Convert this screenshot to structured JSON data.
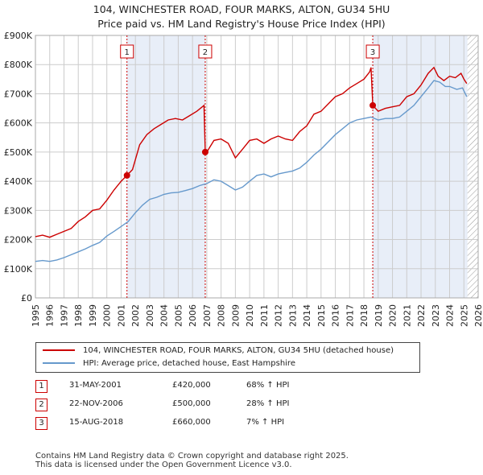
{
  "title": {
    "line1": "104, WINCHESTER ROAD, FOUR MARKS, ALTON, GU34 5HU",
    "line2": "Price paid vs. HM Land Registry's House Price Index (HPI)"
  },
  "colors": {
    "property": "#cc0000",
    "hpi": "#6699cc",
    "shade": "#e8eef8",
    "grid": "#cccccc",
    "marker_border": "#cc0000"
  },
  "legend": {
    "property_label": "104, WINCHESTER ROAD, FOUR MARKS, ALTON, GU34 5HU (detached house)",
    "hpi_label": "HPI: Average price, detached house, East Hampshire"
  },
  "sales": [
    {
      "num": "1",
      "date": "31-MAY-2001",
      "price": "£420,000",
      "hpi": "68% ↑ HPI"
    },
    {
      "num": "2",
      "date": "22-NOV-2006",
      "price": "£500,000",
      "hpi": "28% ↑ HPI"
    },
    {
      "num": "3",
      "date": "15-AUG-2018",
      "price": "£660,000",
      "hpi": "7% ↑ HPI"
    }
  ],
  "footer": {
    "line1": "Contains HM Land Registry data © Crown copyright and database right 2025.",
    "line2": "This data is licensed under the Open Government Licence v3.0."
  },
  "chart_data": {
    "type": "line",
    "xlim": [
      1995,
      2026
    ],
    "ylim": [
      0,
      900000
    ],
    "x_ticks": [
      1995,
      1996,
      1997,
      1998,
      1999,
      2000,
      2001,
      2002,
      2003,
      2004,
      2005,
      2006,
      2007,
      2008,
      2009,
      2010,
      2011,
      2012,
      2013,
      2014,
      2015,
      2016,
      2017,
      2018,
      2019,
      2020,
      2021,
      2022,
      2023,
      2024,
      2025,
      2026
    ],
    "y_ticks": [
      {
        "value": 0,
        "label": "£0"
      },
      {
        "value": 100000,
        "label": "£100K"
      },
      {
        "value": 200000,
        "label": "£200K"
      },
      {
        "value": 300000,
        "label": "£300K"
      },
      {
        "value": 400000,
        "label": "£400K"
      },
      {
        "value": 500000,
        "label": "£500K"
      },
      {
        "value": 600000,
        "label": "£600K"
      },
      {
        "value": 700000,
        "label": "£700K"
      },
      {
        "value": 800000,
        "label": "£800K"
      },
      {
        "value": 900000,
        "label": "£900K"
      }
    ],
    "shaded_ranges": [
      [
        2001.41,
        2006.89
      ],
      [
        2018.62,
        2025.25
      ]
    ],
    "hatched_from": 2025.25,
    "sales_points": [
      {
        "label": "1",
        "x": 2001.41,
        "y": 420000
      },
      {
        "label": "2",
        "x": 2006.89,
        "y": 500000
      },
      {
        "label": "3",
        "x": 2018.62,
        "y": 660000
      }
    ],
    "series": [
      {
        "name": "104, WINCHESTER ROAD, FOUR MARKS, ALTON, GU34 5HU (detached house)",
        "x": [
          1995.0,
          1995.5,
          1996.0,
          1996.5,
          1997.0,
          1997.5,
          1998.0,
          1998.5,
          1999.0,
          1999.5,
          2000.0,
          2000.5,
          2001.0,
          2001.41,
          2001.8,
          2002.3,
          2002.8,
          2003.3,
          2003.8,
          2004.3,
          2004.8,
          2005.3,
          2005.8,
          2006.3,
          2006.8,
          2006.89,
          2007.0,
          2007.5,
          2008.0,
          2008.5,
          2009.0,
          2009.5,
          2010.0,
          2010.5,
          2011.0,
          2011.5,
          2012.0,
          2012.5,
          2013.0,
          2013.5,
          2014.0,
          2014.5,
          2015.0,
          2015.5,
          2016.0,
          2016.5,
          2017.0,
          2017.5,
          2018.0,
          2018.4,
          2018.5,
          2018.62,
          2019.0,
          2019.5,
          2020.0,
          2020.5,
          2021.0,
          2021.5,
          2022.0,
          2022.5,
          2022.9,
          2023.2,
          2023.6,
          2024.0,
          2024.4,
          2024.8,
          2025.0,
          2025.2
        ],
        "values": [
          210000,
          215000,
          208000,
          218000,
          228000,
          238000,
          262000,
          278000,
          300000,
          305000,
          335000,
          370000,
          400000,
          420000,
          440000,
          525000,
          560000,
          580000,
          595000,
          610000,
          615000,
          610000,
          625000,
          640000,
          660000,
          500000,
          500000,
          540000,
          545000,
          530000,
          480000,
          510000,
          540000,
          545000,
          530000,
          545000,
          555000,
          545000,
          540000,
          570000,
          590000,
          630000,
          640000,
          665000,
          690000,
          700000,
          720000,
          735000,
          750000,
          775000,
          790000,
          660000,
          640000,
          650000,
          655000,
          660000,
          690000,
          700000,
          730000,
          770000,
          790000,
          760000,
          745000,
          760000,
          755000,
          770000,
          750000,
          735000
        ]
      },
      {
        "name": "HPI: Average price, detached house, East Hampshire",
        "x": [
          1995.0,
          1995.5,
          1996.0,
          1996.5,
          1997.0,
          1997.5,
          1998.0,
          1998.5,
          1999.0,
          1999.5,
          2000.0,
          2000.5,
          2001.0,
          2001.5,
          2002.0,
          2002.5,
          2003.0,
          2003.5,
          2004.0,
          2004.5,
          2005.0,
          2005.5,
          2006.0,
          2006.5,
          2007.0,
          2007.5,
          2008.0,
          2008.5,
          2009.0,
          2009.5,
          2010.0,
          2010.5,
          2011.0,
          2011.5,
          2012.0,
          2012.5,
          2013.0,
          2013.5,
          2014.0,
          2014.5,
          2015.0,
          2015.5,
          2016.0,
          2016.5,
          2017.0,
          2017.5,
          2018.0,
          2018.5,
          2019.0,
          2019.5,
          2020.0,
          2020.5,
          2021.0,
          2021.5,
          2022.0,
          2022.5,
          2022.9,
          2023.3,
          2023.7,
          2024.0,
          2024.5,
          2024.9,
          2025.2
        ],
        "values": [
          125000,
          128000,
          125000,
          130000,
          138000,
          148000,
          158000,
          168000,
          180000,
          190000,
          212000,
          228000,
          245000,
          262000,
          292000,
          318000,
          338000,
          345000,
          355000,
          360000,
          362000,
          368000,
          375000,
          385000,
          392000,
          405000,
          400000,
          385000,
          370000,
          380000,
          400000,
          420000,
          425000,
          415000,
          425000,
          430000,
          435000,
          445000,
          465000,
          490000,
          510000,
          535000,
          560000,
          580000,
          600000,
          610000,
          615000,
          620000,
          610000,
          615000,
          615000,
          620000,
          640000,
          660000,
          690000,
          720000,
          745000,
          740000,
          725000,
          725000,
          715000,
          720000,
          690000
        ]
      }
    ]
  }
}
